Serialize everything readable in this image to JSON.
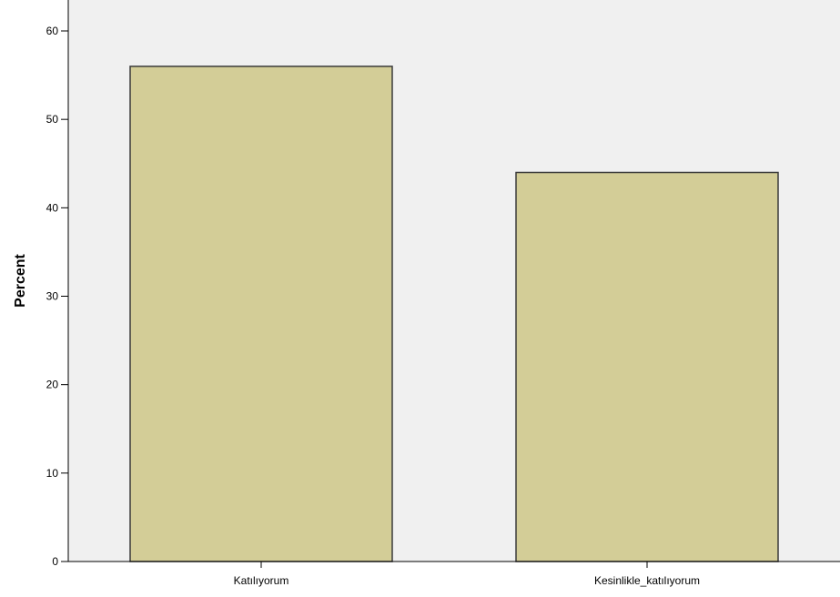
{
  "chart_data": {
    "type": "bar",
    "categories": [
      "Katılıyorum",
      "Kesinlikle_katılıyorum"
    ],
    "values": [
      56,
      44
    ],
    "title": "",
    "xlabel": "",
    "ylabel": "Percent",
    "ylim": [
      0,
      63.5
    ],
    "yticks": [
      0,
      10,
      20,
      30,
      40,
      50,
      60
    ],
    "grid": false,
    "colors": {
      "bar_fill": "#d3cd97",
      "bar_stroke": "#3a3a3a",
      "plot_background": "#f0f0f0",
      "axis": "#000000"
    }
  }
}
